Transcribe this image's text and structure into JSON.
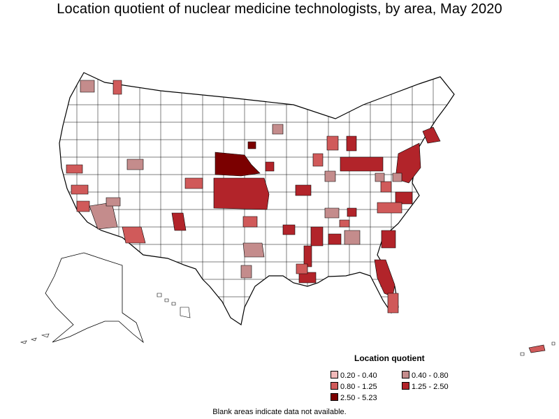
{
  "title": "Location quotient of nuclear medicine technologists, by area, May 2020",
  "legend": {
    "title": "Location quotient",
    "items": [
      {
        "label": "0.20 - 0.40",
        "color": "#f1b9b9"
      },
      {
        "label": "0.40 - 0.80",
        "color": "#c48c8c"
      },
      {
        "label": "0.80 - 1.25",
        "color": "#d05a5a"
      },
      {
        "label": "1.25 - 2.50",
        "color": "#b2242a"
      },
      {
        "label": "2.50 - 5.23",
        "color": "#7b0000"
      }
    ]
  },
  "note": "Blank areas indicate data not available."
}
